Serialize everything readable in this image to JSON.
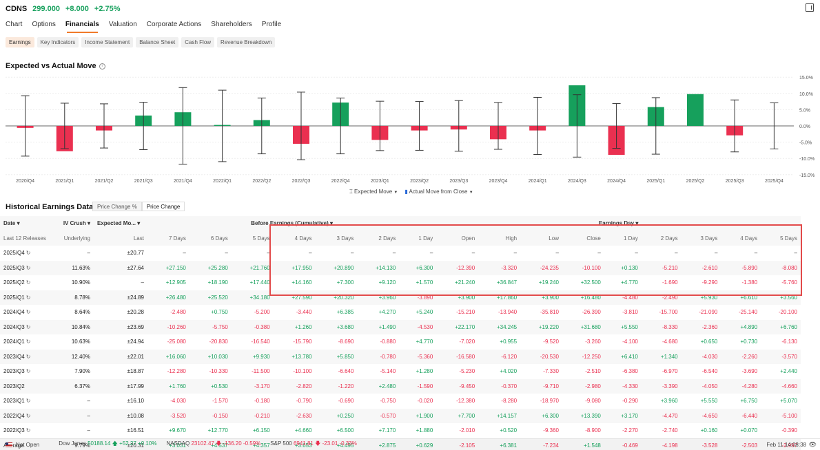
{
  "header": {
    "symbol": "CDNS",
    "price": "299.000",
    "change": "+8.000",
    "change_pct": "+2.75%"
  },
  "tabs": [
    "Chart",
    "Options",
    "Financials",
    "Valuation",
    "Corporate Actions",
    "Shareholders",
    "Profile"
  ],
  "active_tab": "Financials",
  "subtabs": [
    "Earnings",
    "Key Indicators",
    "Income Statement",
    "Balance Sheet",
    "Cash Flow",
    "Revenue Breakdown"
  ],
  "active_subtab": "Earnings",
  "chart_section": {
    "title": "Expected vs Actual Move"
  },
  "chart_data": {
    "type": "bar",
    "categories": [
      "2020/Q4",
      "2021/Q1",
      "2021/Q2",
      "2021/Q3",
      "2021/Q4",
      "2022/Q1",
      "2022/Q2",
      "2022/Q3",
      "2022/Q4",
      "2023/Q1",
      "2023/Q2",
      "2023/Q3",
      "2023/Q4",
      "2024/Q1",
      "2024/Q3",
      "2024/Q4",
      "2025/Q1",
      "2025/Q2",
      "2025/Q3",
      "2025/Q4"
    ],
    "series": [
      {
        "name": "Expected Move",
        "type": "errorbar",
        "values": [
          9.3,
          7.0,
          6.8,
          7.3,
          11.8,
          11.0,
          8.6,
          10.4,
          8.6,
          7.6,
          7.5,
          7.8,
          7.2,
          8.8,
          9.6,
          6.9,
          8.7,
          null,
          8.0,
          7.1
        ]
      },
      {
        "name": "Actual Move from Close",
        "type": "bar",
        "values": [
          -0.6,
          -7.8,
          -1.4,
          3.2,
          4.2,
          0.3,
          1.8,
          -5.5,
          7.2,
          -4.3,
          -1.4,
          -1.1,
          -4.1,
          -1.4,
          12.5,
          -8.9,
          5.8,
          9.8,
          -2.9,
          null
        ]
      }
    ],
    "yticks": [
      "15.0%",
      "10.0%",
      "5.0%",
      "0.0%",
      "-5.0%",
      "-10.0%",
      "-15.0%"
    ],
    "ylim": [
      -15,
      15
    ]
  },
  "legend": {
    "expected": "Expected Move",
    "actual": "Actual Move from Close"
  },
  "table_section": {
    "title": "Historical Earnings Data",
    "toggle": [
      "Price Change %",
      "Price Change"
    ],
    "active_toggle": "Price Change"
  },
  "table": {
    "group_headers": {
      "date": "Date",
      "iv": "IV Crush",
      "exp": "Expected Mo...",
      "before": "Before Earnings (Cumulative)",
      "day": "Earnings Day"
    },
    "sub_headers": [
      "Last 12 Releases",
      "Underlying",
      "Last",
      "7 Days",
      "6 Days",
      "5 Days",
      "4 Days",
      "3 Days",
      "2 Days",
      "1 Day",
      "Open",
      "High",
      "Low",
      "Close",
      "1 Day",
      "2 Days",
      "3 Days",
      "4 Days",
      "5 Days"
    ],
    "rows": [
      [
        "2025/Q4",
        "–",
        "±20.77",
        "–",
        "–",
        "–",
        "–",
        "–",
        "–",
        "–",
        "–",
        "–",
        "–",
        "–",
        "–",
        "–",
        "–",
        "–",
        "–"
      ],
      [
        "2025/Q3",
        "11.63%",
        "±27.64",
        "+27.150",
        "+25.280",
        "+21.760",
        "+17.950",
        "+20.890",
        "+14.130",
        "+6.300",
        "-12.390",
        "-3.320",
        "-24.235",
        "-10.100",
        "+0.130",
        "-5.210",
        "-2.610",
        "-5.890",
        "-8.080"
      ],
      [
        "2025/Q2",
        "10.90%",
        "–",
        "+12.905",
        "+18.190",
        "+17.440",
        "+14.160",
        "+7.300",
        "+9.120",
        "+1.570",
        "+21.240",
        "+36.847",
        "+19.240",
        "+32.500",
        "+4.770",
        "-1.690",
        "-9.290",
        "-1.380",
        "-5.760"
      ],
      [
        "2025/Q1",
        "8.78%",
        "±24.89",
        "+26.480",
        "+25.520",
        "+34.180",
        "+27.590",
        "+20.320",
        "+3.960",
        "-3.890",
        "+3.900",
        "+17.860",
        "+3.900",
        "+16.480",
        "-4.480",
        "-2.490",
        "+5.930",
        "+6.610",
        "+3.560"
      ],
      [
        "2024/Q4",
        "8.64%",
        "±20.28",
        "-2.480",
        "+0.750",
        "-5.200",
        "-3.440",
        "+6.385",
        "+4.270",
        "+5.240",
        "-15.210",
        "-13.940",
        "-35.810",
        "-26.390",
        "-3.810",
        "-15.700",
        "-21.090",
        "-25.140",
        "-20.100"
      ],
      [
        "2024/Q3",
        "10.84%",
        "±23.69",
        "-10.260",
        "-5.750",
        "-0.380",
        "+1.260",
        "+3.680",
        "+1.490",
        "-4.530",
        "+22.170",
        "+34.245",
        "+19.220",
        "+31.680",
        "+5.550",
        "-8.330",
        "-2.360",
        "+4.890",
        "+6.760"
      ],
      [
        "2024/Q1",
        "10.63%",
        "±24.94",
        "-25.080",
        "-20.830",
        "-16.540",
        "-15.790",
        "-8.690",
        "-0.880",
        "+4.770",
        "-7.020",
        "+0.955",
        "-9.520",
        "-3.260",
        "-4.100",
        "-4.680",
        "+0.650",
        "+0.730",
        "-6.130"
      ],
      [
        "2023/Q4",
        "12.40%",
        "±22.01",
        "+16.060",
        "+10.030",
        "+9.930",
        "+13.780",
        "+5.850",
        "-0.780",
        "-5.360",
        "-16.580",
        "-6.120",
        "-20.530",
        "-12.250",
        "+6.410",
        "+1.340",
        "-4.030",
        "-2.260",
        "-3.570"
      ],
      [
        "2023/Q3",
        "7.90%",
        "±18.87",
        "-12.280",
        "-10.330",
        "-11.500",
        "-10.100",
        "-6.640",
        "-5.140",
        "+1.280",
        "-5.230",
        "+4.020",
        "-7.330",
        "-2.510",
        "-6.380",
        "-6.970",
        "-6.540",
        "-3.690",
        "+2.440"
      ],
      [
        "2023/Q2",
        "6.37%",
        "±17.99",
        "+1.760",
        "+0.530",
        "-3.170",
        "-2.820",
        "-1.220",
        "+2.480",
        "-1.590",
        "-9.450",
        "-0.370",
        "-9.710",
        "-2.980",
        "-4.330",
        "-3.390",
        "-4.050",
        "-4.280",
        "-4.660"
      ],
      [
        "2023/Q1",
        "–",
        "±16.10",
        "-4.030",
        "-1.570",
        "-0.180",
        "-0.790",
        "-0.690",
        "-0.750",
        "-0.020",
        "-12.380",
        "-8.280",
        "-18.970",
        "-9.080",
        "-0.290",
        "+3.960",
        "+5.550",
        "+6.750",
        "+5.070"
      ],
      [
        "2022/Q4",
        "–",
        "±10.08",
        "-3.520",
        "-0.150",
        "-0.210",
        "-2.630",
        "+0.250",
        "-0.570",
        "+1.900",
        "+7.700",
        "+14.157",
        "+6.300",
        "+13.390",
        "+3.170",
        "-4.470",
        "-4.650",
        "-6.440",
        "-5.100"
      ],
      [
        "2022/Q3",
        "–",
        "±16.51",
        "+9.670",
        "+12.770",
        "+6.150",
        "+4.660",
        "+6.500",
        "+7.170",
        "+1.880",
        "-2.010",
        "+0.520",
        "-9.360",
        "-8.900",
        "-2.270",
        "-2.740",
        "+0.160",
        "+0.070",
        "-0.390"
      ]
    ],
    "average": [
      "Average",
      "9.79%",
      "±20.31",
      "+3.031",
      "+4.537",
      "+4.357",
      "+3.653",
      "+4.495",
      "+2.875",
      "+0.629",
      "-2.105",
      "+6.381",
      "-7.234",
      "+1.548",
      "-0.469",
      "-4.198",
      "-3.528",
      "-2.503",
      "-2.997"
    ]
  },
  "footer": {
    "market_status": "Not Open",
    "indices": [
      {
        "name": "Dow Jones",
        "value": "50188.14",
        "arrow": "up",
        "change": "+52.27",
        "pct": "+0.10%"
      },
      {
        "name": "NASDAQ",
        "value": "23102.47",
        "arrow": "down",
        "change": "-136.20",
        "pct": "-0.59%"
      },
      {
        "name": "S&P 500",
        "value": "6941.81",
        "arrow": "down",
        "change": "-23.01",
        "pct": "-0.33%"
      }
    ],
    "time": "Feb 11 14:08:38"
  },
  "colors": {
    "green": "#16a05c",
    "red": "#ea3050",
    "accent": "#f07a2a"
  }
}
